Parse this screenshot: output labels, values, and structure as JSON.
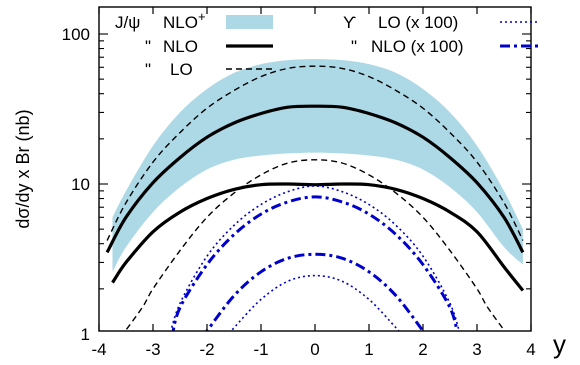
{
  "chart_data": {
    "type": "line",
    "xlabel": "y",
    "ylabel": "dσ/dy x Br (nb)",
    "xlim": [
      -4,
      4
    ],
    "ylim": [
      1,
      150
    ],
    "yscale": "log",
    "x_ticks": [
      "-4",
      "-3",
      "-2",
      "-1",
      "0",
      "1",
      "2",
      "3",
      "4"
    ],
    "y_ticks": [
      {
        "value": 1,
        "label": "1"
      },
      {
        "value": 10,
        "label": "10"
      },
      {
        "value": 100,
        "label": "100"
      }
    ],
    "grid": false,
    "legend": {
      "left": {
        "group_label": "J/ψ",
        "ditto": "\"",
        "items": [
          {
            "label": "NLO",
            "sup": "+",
            "series": "jpsi_nlo_plus"
          },
          {
            "label": "NLO",
            "series": "jpsi_nlo"
          },
          {
            "label": "LO",
            "series": "jpsi_lo"
          }
        ]
      },
      "right": {
        "group_label": "ϒ",
        "ditto": "\"",
        "items": [
          {
            "label": "LO  (x 100)",
            "series": "ups_lo"
          },
          {
            "label": "NLO (x 100)",
            "series": "ups_nlo"
          }
        ]
      }
    },
    "colors": {
      "band": "#add8e6",
      "black": "#000000",
      "blue": "#0000cc"
    },
    "series": [
      {
        "id": "jpsi_nlo_plus",
        "kind": "band",
        "x": [
          -3.75,
          -3.5,
          -3,
          -2.5,
          -2,
          -1.5,
          -1,
          -0.5,
          0,
          0.5,
          1,
          1.5,
          2,
          2.5,
          3,
          3.5,
          3.85
        ],
        "y_low": [
          2.6,
          3.8,
          6.5,
          9.5,
          12.5,
          14.5,
          15.5,
          16.0,
          16.2,
          16.0,
          15.5,
          14.5,
          12.5,
          9.5,
          6.5,
          3.8,
          2.9
        ],
        "y_high": [
          6.0,
          9.0,
          18.0,
          30.0,
          43.0,
          55.0,
          63.0,
          67.0,
          68.0,
          67.0,
          63.0,
          55.0,
          43.0,
          30.0,
          18.0,
          9.0,
          5.0
        ]
      },
      {
        "id": "jpsi_nlo_plus_central",
        "kind": "line",
        "style": "solid-bold",
        "color": "black",
        "x": [
          -3.85,
          -3.5,
          -3,
          -2.5,
          -2,
          -1.5,
          -1,
          -0.5,
          0,
          0.5,
          1,
          1.5,
          2,
          2.5,
          3,
          3.5,
          3.85
        ],
        "y": [
          3.5,
          6.0,
          10.2,
          15.0,
          20.5,
          25.5,
          29.5,
          32.5,
          33.0,
          32.5,
          29.5,
          25.5,
          20.5,
          15.0,
          10.2,
          6.0,
          3.5
        ]
      },
      {
        "id": "jpsi_lo",
        "kind": "line",
        "style": "dashed",
        "color": "black",
        "x": [
          -3.85,
          -3.5,
          -3,
          -2.5,
          -2,
          -1.5,
          -1,
          -0.5,
          0,
          0.5,
          1,
          1.5,
          2,
          2.5,
          3,
          3.5,
          3.85
        ],
        "y": [
          4.2,
          7.5,
          14.0,
          22.0,
          32.0,
          42.0,
          52.0,
          59.0,
          61.0,
          59.0,
          52.0,
          42.0,
          32.0,
          22.0,
          14.0,
          7.5,
          4.2
        ]
      },
      {
        "id": "jpsi_nlo",
        "kind": "line",
        "style": "solid-bold",
        "color": "black",
        "x": [
          -3.75,
          -3.5,
          -3,
          -2.5,
          -2,
          -1.5,
          -1,
          -0.5,
          0,
          0.5,
          1,
          1.5,
          2,
          2.5,
          3,
          3.5,
          3.85
        ],
        "y": [
          2.2,
          3.0,
          4.8,
          6.5,
          8.0,
          9.2,
          9.9,
          10.0,
          9.9,
          10.0,
          9.9,
          9.2,
          8.0,
          6.5,
          4.8,
          2.8,
          1.95
        ]
      },
      {
        "id": "jpsi_lo_lower",
        "kind": "line",
        "style": "dashed",
        "color": "black",
        "x": [
          -3.6,
          -3.2,
          -3,
          -2.5,
          -2,
          -1.5,
          -1,
          -0.5,
          0,
          0.5,
          1,
          1.5,
          2,
          2.5,
          3,
          3.2,
          3.6
        ],
        "y": [
          0.95,
          1.5,
          2.0,
          3.6,
          6.0,
          8.7,
          11.5,
          13.8,
          14.5,
          13.8,
          11.5,
          8.7,
          6.0,
          3.6,
          2.0,
          1.5,
          0.95
        ]
      },
      {
        "id": "ups_lo",
        "kind": "line",
        "style": "dotted",
        "color": "blue",
        "x": [
          -2.7,
          -2.5,
          -2,
          -1.5,
          -1,
          -0.5,
          0,
          0.5,
          1,
          1.5,
          2,
          2.5,
          2.7
        ],
        "y": [
          0.95,
          1.6,
          3.3,
          5.3,
          7.3,
          8.9,
          9.7,
          8.9,
          7.3,
          5.3,
          3.3,
          1.6,
          0.95
        ]
      },
      {
        "id": "ups_nlo",
        "kind": "line",
        "style": "dash-dot-bold",
        "color": "blue",
        "x": [
          -2.65,
          -2.5,
          -2,
          -1.5,
          -1,
          -0.5,
          0,
          0.5,
          1,
          1.5,
          2,
          2.5,
          2.65
        ],
        "y": [
          0.95,
          1.5,
          2.9,
          4.6,
          6.3,
          7.6,
          8.2,
          7.6,
          6.3,
          4.6,
          2.9,
          1.5,
          0.95
        ]
      },
      {
        "id": "ups_nlo_lower",
        "kind": "line",
        "style": "dash-dot-bold",
        "color": "blue",
        "x": [
          -2.1,
          -2,
          -1.5,
          -1,
          -0.5,
          0,
          0.5,
          1,
          1.5,
          2,
          2.1
        ],
        "y": [
          0.95,
          1.05,
          1.8,
          2.6,
          3.2,
          3.4,
          3.2,
          2.6,
          1.8,
          1.05,
          0.95
        ]
      },
      {
        "id": "ups_lo_lower",
        "kind": "line",
        "style": "dotted",
        "color": "blue",
        "x": [
          -1.65,
          -1.5,
          -1,
          -0.5,
          0,
          0.5,
          1,
          1.5,
          1.65
        ],
        "y": [
          0.95,
          1.1,
          1.7,
          2.25,
          2.45,
          2.25,
          1.7,
          1.1,
          0.95
        ]
      }
    ]
  }
}
